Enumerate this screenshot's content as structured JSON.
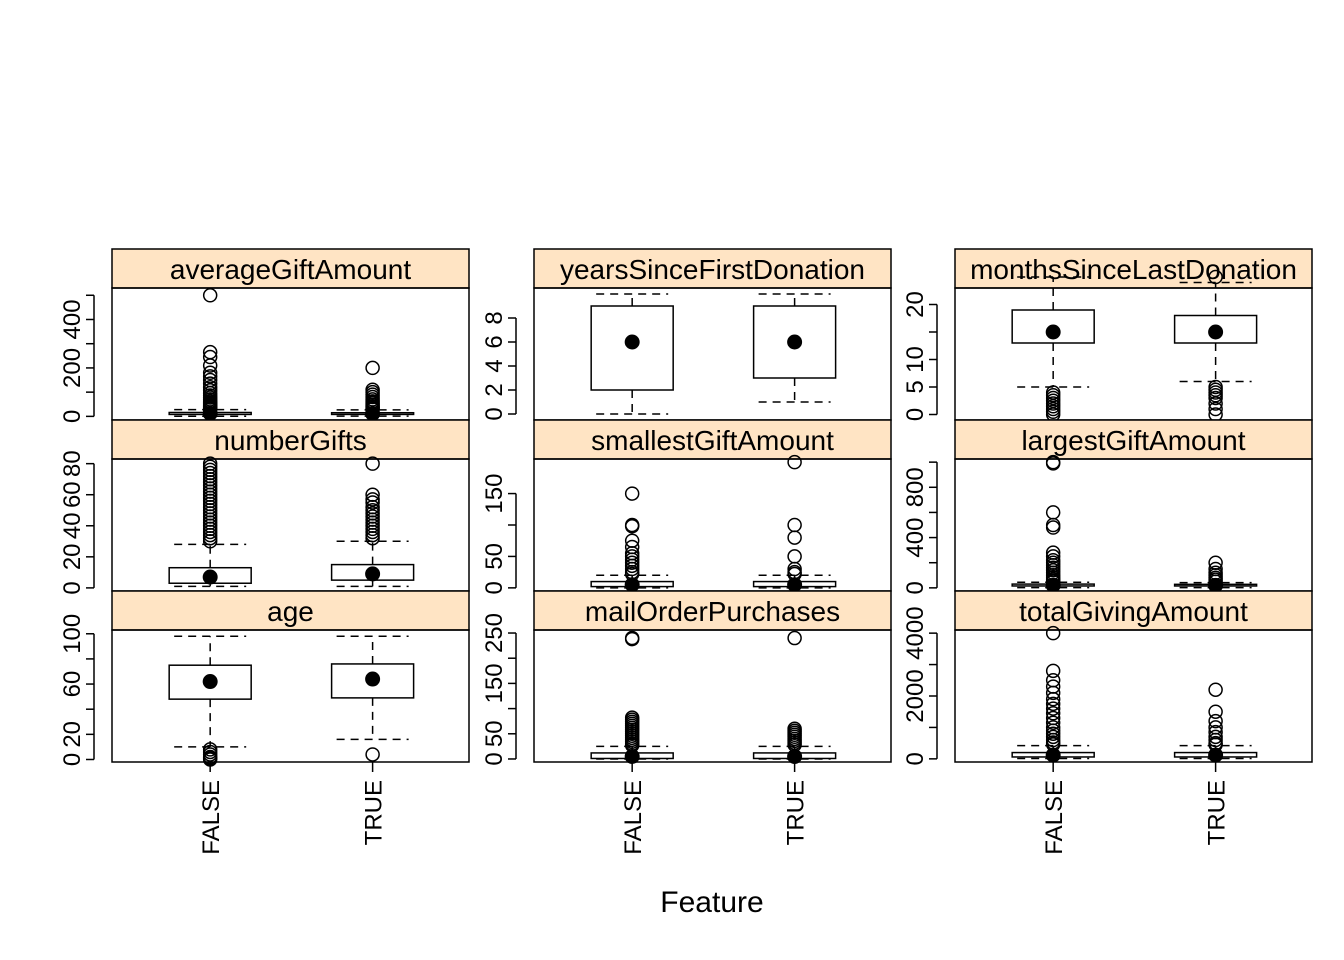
{
  "chart_data": {
    "type": "boxplot",
    "xlabel": "Feature",
    "categories": [
      "FALSE",
      "TRUE"
    ],
    "strip_color": "#FFE4C4",
    "panels": [
      {
        "title": "averageGiftAmount",
        "ylim": [
          -15,
          530
        ],
        "yticks": [
          0,
          100,
          200,
          300,
          400,
          500
        ],
        "ytick_labels": [
          "0",
          "",
          "200",
          "",
          "400",
          ""
        ],
        "boxes": [
          {
            "category": "FALSE",
            "whisker_low": 0.5,
            "q1": 8,
            "median": 12,
            "q3": 16,
            "whisker_high": 28,
            "outliers": [
              500,
              265,
              245,
              210,
              180,
              165,
              150,
              135,
              120,
              108,
              96,
              86,
              78,
              70,
              63,
              57,
              52,
              47,
              43,
              39,
              36,
              33,
              30
            ]
          },
          {
            "category": "TRUE",
            "whisker_low": 1,
            "q1": 8,
            "median": 11,
            "q3": 15,
            "whisker_high": 27,
            "outliers": [
              200,
              110,
              100,
              90,
              80,
              70,
              62,
              55,
              48,
              42,
              37,
              32,
              30
            ]
          }
        ]
      },
      {
        "title": "yearsSinceFirstDonation",
        "ylim": [
          -0.5,
          10.5
        ],
        "yticks": [
          0,
          2,
          4,
          6,
          8
        ],
        "ytick_labels": [
          "0",
          "2",
          "4",
          "6",
          "8"
        ],
        "boxes": [
          {
            "category": "FALSE",
            "whisker_low": 0,
            "q1": 2,
            "median": 6,
            "q3": 9,
            "whisker_high": 10,
            "outliers": []
          },
          {
            "category": "TRUE",
            "whisker_low": 1,
            "q1": 3,
            "median": 6,
            "q3": 9,
            "whisker_high": 10,
            "outliers": []
          }
        ]
      },
      {
        "title": "monthsSinceLastDonation",
        "ylim": [
          -1,
          23
        ],
        "yticks": [
          0,
          5,
          10,
          15,
          20
        ],
        "ytick_labels": [
          "0",
          "5",
          "10",
          "",
          "20"
        ],
        "boxes": [
          {
            "category": "FALSE",
            "whisker_low": 5,
            "q1": 13,
            "median": 15,
            "q3": 19,
            "whisker_high": 25,
            "outliers": [
              4,
              3.5,
              3,
              2.5,
              2,
              1.5,
              1,
              0.5,
              0
            ]
          },
          {
            "category": "TRUE",
            "whisker_low": 6,
            "q1": 13,
            "median": 15,
            "q3": 18,
            "whisker_high": 24,
            "outliers": [
              25,
              5,
              4.5,
              4,
              3.5,
              3,
              2,
              1,
              0
            ]
          }
        ]
      },
      {
        "title": "numberGifts",
        "ylim": [
          -2,
          83
        ],
        "yticks": [
          0,
          20,
          40,
          60,
          80
        ],
        "ytick_labels": [
          "0",
          "20",
          "40",
          "60",
          "80"
        ],
        "boxes": [
          {
            "category": "FALSE",
            "whisker_low": 1,
            "q1": 3,
            "median": 7,
            "q3": 13,
            "whisker_high": 28,
            "outliers": [
              80,
              78,
              76,
              74,
              72,
              70,
              68,
              66,
              64,
              62,
              60,
              58,
              56,
              54,
              52,
              50,
              48,
              46,
              44,
              42,
              40,
              38,
              36,
              34,
              32,
              30
            ]
          },
          {
            "category": "TRUE",
            "whisker_low": 1,
            "q1": 5,
            "median": 9,
            "q3": 15,
            "whisker_high": 30,
            "outliers": [
              80,
              60,
              57,
              55,
              52,
              50,
              48,
              46,
              44,
              42,
              40,
              38,
              36,
              34,
              32
            ]
          }
        ]
      },
      {
        "title": "smallestGiftAmount",
        "ylim": [
          -5,
          205
        ],
        "yticks": [
          0,
          50,
          100,
          150
        ],
        "ytick_labels": [
          "0",
          "50",
          "",
          "150"
        ],
        "boxes": [
          {
            "category": "FALSE",
            "whisker_low": 0,
            "q1": 2,
            "median": 5,
            "q3": 10,
            "whisker_high": 20,
            "outliers": [
              150,
              100,
              98,
              75,
              65,
              55,
              50,
              45,
              40,
              35,
              30,
              25,
              22
            ]
          },
          {
            "category": "TRUE",
            "whisker_low": 0,
            "q1": 2,
            "median": 5,
            "q3": 10,
            "whisker_high": 20,
            "outliers": [
              200,
              100,
              80,
              50,
              30,
              25,
              22
            ]
          }
        ]
      },
      {
        "title": "largestGiftAmount",
        "ylim": [
          -25,
          1025
        ],
        "yticks": [
          0,
          200,
          400,
          600,
          800,
          1000
        ],
        "ytick_labels": [
          "0",
          "",
          "400",
          "",
          "800",
          ""
        ],
        "boxes": [
          {
            "category": "FALSE",
            "whisker_low": 2,
            "q1": 15,
            "median": 20,
            "q3": 30,
            "whisker_high": 45,
            "outliers": [
              1000,
              990,
              600,
              500,
              480,
              280,
              250,
              220,
              200,
              180,
              160,
              140,
              120,
              100,
              85,
              70,
              60,
              50
            ]
          },
          {
            "category": "TRUE",
            "whisker_low": 2,
            "q1": 15,
            "median": 20,
            "q3": 28,
            "whisker_high": 42,
            "outliers": [
              200,
              150,
              120,
              100,
              80,
              65,
              50
            ]
          }
        ]
      },
      {
        "title": "age",
        "ylim": [
          -2,
          103
        ],
        "yticks": [
          0,
          20,
          40,
          60,
          80,
          100
        ],
        "ytick_labels": [
          "0",
          "20",
          "",
          "60",
          "",
          "100"
        ],
        "boxes": [
          {
            "category": "FALSE",
            "whisker_low": 10,
            "q1": 48,
            "median": 62,
            "q3": 75,
            "whisker_high": 98,
            "outliers": [
              8,
              6,
              4,
              2,
              1,
              0
            ]
          },
          {
            "category": "TRUE",
            "whisker_low": 16,
            "q1": 49,
            "median": 64,
            "q3": 76,
            "whisker_high": 98,
            "outliers": [
              4
            ]
          }
        ]
      },
      {
        "title": "mailOrderPurchases",
        "ylim": [
          -6,
          256
        ],
        "yticks": [
          0,
          50,
          100,
          150,
          200,
          250
        ],
        "ytick_labels": [
          "0",
          "50",
          "",
          "150",
          "",
          "250"
        ],
        "boxes": [
          {
            "category": "FALSE",
            "whisker_low": 0,
            "q1": 1,
            "median": 5,
            "q3": 12,
            "whisker_high": 25,
            "outliers": [
              240,
              238,
              82,
              78,
              74,
              70,
              66,
              62,
              58,
              54,
              50,
              46,
              42,
              38,
              34,
              30,
              27
            ]
          },
          {
            "category": "TRUE",
            "whisker_low": 0,
            "q1": 1,
            "median": 5,
            "q3": 12,
            "whisker_high": 25,
            "outliers": [
              240,
              60,
              56,
              52,
              48,
              44,
              40,
              36,
              32,
              28
            ]
          }
        ]
      },
      {
        "title": "totalGivingAmount",
        "ylim": [
          -100,
          4100
        ],
        "yticks": [
          0,
          1000,
          2000,
          3000,
          4000
        ],
        "ytick_labels": [
          "0",
          "",
          "2000",
          "",
          "4000"
        ],
        "boxes": [
          {
            "category": "FALSE",
            "whisker_low": 10,
            "q1": 60,
            "median": 120,
            "q3": 200,
            "whisker_high": 420,
            "outliers": [
              4000,
              2800,
              2500,
              2300,
              2100,
              1900,
              1750,
              1600,
              1450,
              1300,
              1150,
              1000,
              900,
              800,
              700,
              600,
              520,
              460
            ]
          },
          {
            "category": "TRUE",
            "whisker_low": 10,
            "q1": 60,
            "median": 120,
            "q3": 200,
            "whisker_high": 420,
            "outliers": [
              2200,
              1500,
              1200,
              1000,
              850,
              700,
              600,
              500,
              450
            ]
          }
        ]
      }
    ]
  }
}
